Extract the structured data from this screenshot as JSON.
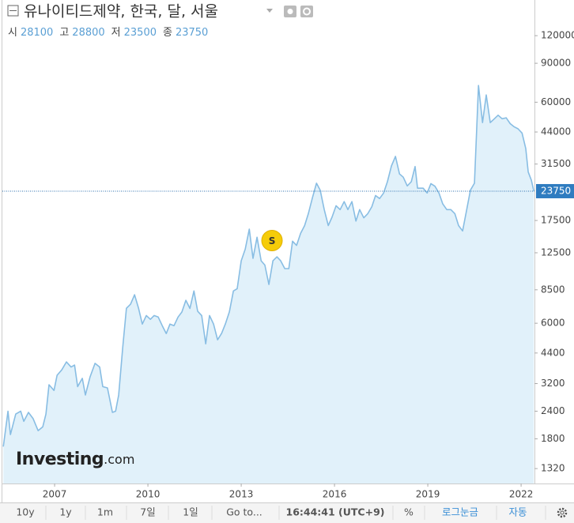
{
  "chart_data": {
    "type": "area",
    "title": "유나이티드제약, 한국, 달, 서울",
    "ohlc": [
      {
        "label": "시",
        "value": 28100
      },
      {
        "label": "고",
        "value": 28800
      },
      {
        "label": "저",
        "value": 23500
      },
      {
        "label": "종",
        "value": 23750
      }
    ],
    "current_price": 23750,
    "log_scale": true,
    "grid": false,
    "color": "#88bde3",
    "fill": "#e1f1fa",
    "xlim": [
      2005.32,
      2022.43
    ],
    "xticks": [
      2007,
      2010,
      2013,
      2016,
      2019,
      2022
    ],
    "ylim": [
      1130,
      174000
    ],
    "yticks": [
      1320,
      1800,
      2400,
      3200,
      4400,
      6000,
      8500,
      12500,
      17500,
      31500,
      44000,
      60000,
      90000,
      120000
    ],
    "x": [
      2005.35,
      2005.5,
      2005.58,
      2005.75,
      2005.91,
      2006.01,
      2006.16,
      2006.31,
      2006.47,
      2006.62,
      2006.72,
      2006.82,
      2006.98,
      2007.08,
      2007.23,
      2007.38,
      2007.53,
      2007.64,
      2007.74,
      2007.89,
      2007.99,
      2008.14,
      2008.3,
      2008.45,
      2008.55,
      2008.7,
      2008.86,
      2008.96,
      2009.06,
      2009.19,
      2009.31,
      2009.44,
      2009.57,
      2009.7,
      2009.82,
      2009.95,
      2010.08,
      2010.2,
      2010.33,
      2010.46,
      2010.59,
      2010.71,
      2010.84,
      2010.97,
      2011.09,
      2011.22,
      2011.35,
      2011.48,
      2011.6,
      2011.73,
      2011.86,
      2011.98,
      2012.11,
      2012.24,
      2012.37,
      2012.49,
      2012.62,
      2012.75,
      2012.87,
      2013.0,
      2013.13,
      2013.26,
      2013.38,
      2013.51,
      2013.64,
      2013.76,
      2013.89,
      2014.02,
      2014.15,
      2014.27,
      2014.4,
      2014.53,
      2014.65,
      2014.78,
      2014.91,
      2015.04,
      2015.16,
      2015.29,
      2015.42,
      2015.54,
      2015.67,
      2015.8,
      2015.92,
      2016.05,
      2016.18,
      2016.31,
      2016.43,
      2016.56,
      2016.69,
      2016.81,
      2016.94,
      2017.07,
      2017.2,
      2017.32,
      2017.45,
      2017.58,
      2017.7,
      2017.83,
      2017.96,
      2018.09,
      2018.21,
      2018.34,
      2018.47,
      2018.59,
      2018.67,
      2018.85,
      2018.98,
      2019.1,
      2019.23,
      2019.36,
      2019.48,
      2019.61,
      2019.74,
      2019.87,
      2019.99,
      2020.12,
      2020.25,
      2020.37,
      2020.5,
      2020.63,
      2020.76,
      2020.88,
      2021.01,
      2021.14,
      2021.26,
      2021.39,
      2021.52,
      2021.65,
      2021.77,
      2021.9,
      2022.03,
      2022.15,
      2022.23,
      2022.33,
      2022.41
    ],
    "values": [
      1660,
      2400,
      1880,
      2330,
      2400,
      2160,
      2370,
      2220,
      1960,
      2040,
      2330,
      3160,
      2980,
      3490,
      3690,
      4010,
      3800,
      3880,
      3100,
      3380,
      2840,
      3430,
      3950,
      3800,
      3100,
      3060,
      2370,
      2400,
      2840,
      4650,
      7010,
      7310,
      8070,
      7000,
      5950,
      6500,
      6250,
      6500,
      6400,
      5850,
      5390,
      5950,
      5850,
      6400,
      6740,
      7620,
      7000,
      8400,
      6800,
      6500,
      4840,
      6500,
      5950,
      5050,
      5400,
      5950,
      6750,
      8400,
      8600,
      11500,
      13000,
      16000,
      11800,
      14700,
      11500,
      11000,
      8980,
      11500,
      11980,
      11500,
      10600,
      10600,
      14100,
      13500,
      15300,
      16600,
      18800,
      22200,
      25800,
      24000,
      19600,
      16600,
      18100,
      20400,
      19600,
      21300,
      19600,
      21300,
      17400,
      19600,
      18000,
      18800,
      20200,
      22700,
      22000,
      23300,
      26200,
      30900,
      34100,
      28400,
      27500,
      25100,
      26200,
      30700,
      24500,
      24500,
      23300,
      25700,
      25000,
      23300,
      20800,
      19600,
      19600,
      18800,
      16600,
      15700,
      19600,
      24000,
      25800,
      71400,
      48500,
      64700,
      48500,
      50500,
      52400,
      50500,
      51000,
      48000,
      46500,
      45500,
      43500,
      37000,
      29000,
      26600,
      23750
    ],
    "annotations": [
      {
        "text": "S",
        "x": 2013.99,
        "y": 14200
      }
    ],
    "watermark": [
      "Investing",
      ".com"
    ],
    "toolbar": [
      "10y",
      "1y",
      "1m",
      "7일",
      "1일",
      "Go to...",
      "16:44:41 (UTC+9)",
      "%",
      "로그눈금",
      "자동"
    ]
  }
}
